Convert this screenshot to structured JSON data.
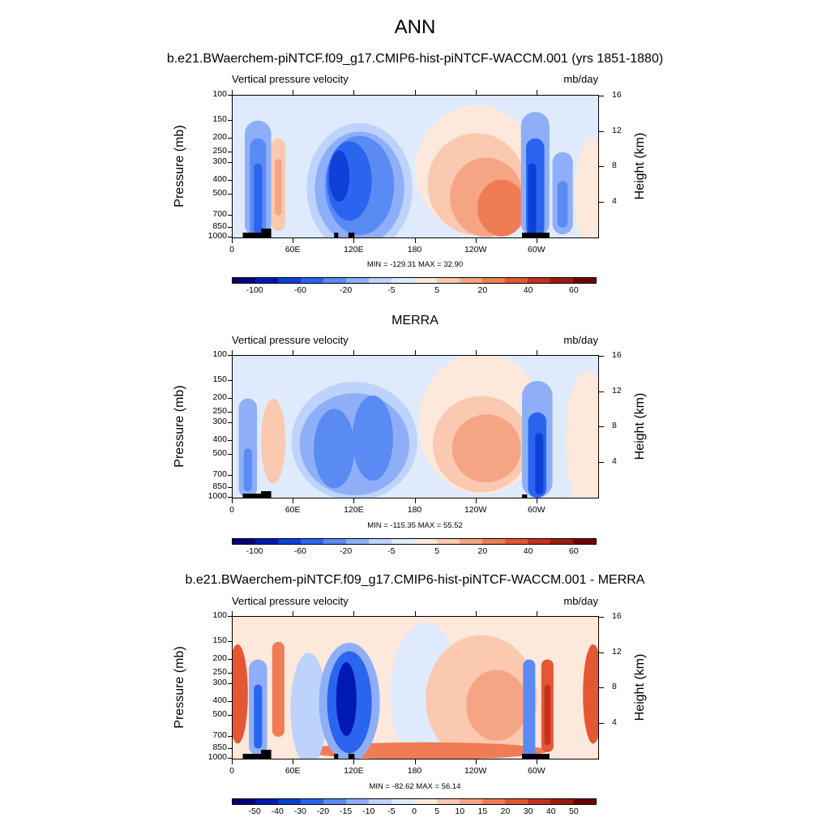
{
  "title": "ANN",
  "colors": {
    "model": [
      "#00007a",
      "#0019b4",
      "#0d3fd9",
      "#2b64ef",
      "#5a8af4",
      "#8eaff7",
      "#bdd3fb",
      "#dfebfd",
      "#fde8dc",
      "#fbc9b0",
      "#f6a584",
      "#f07c55",
      "#e45634",
      "#c6311b",
      "#9e1a10",
      "#6e0000"
    ],
    "diff": [
      "#00007a",
      "#0019b4",
      "#0d3fd9",
      "#2b64ef",
      "#5a8af4",
      "#8eaff7",
      "#bdd3fb",
      "#dfebfd",
      "#fde8dc",
      "#fbc9b0",
      "#f6a584",
      "#f07c55",
      "#e45634",
      "#c6311b",
      "#9e1a10",
      "#6e0000"
    ]
  },
  "panels": [
    {
      "title": "b.e21.BWaerchem-piNTCF.f09_g17.CMIP6-hist-piNTCF-WACCM.001 (yrs 1851-1880)",
      "variable": "Vertical pressure velocity",
      "units": "mb/day",
      "stats": "MIN = -129.31  MAX =  32.90",
      "colorbar_labels": [
        "-100",
        "-60",
        "-20",
        "-5",
        "5",
        "20",
        "40",
        "60"
      ]
    },
    {
      "title": "MERRA",
      "variable": "Vertical pressure velocity",
      "units": "mb/day",
      "stats": "MIN = -115.35  MAX =  55.52",
      "colorbar_labels": [
        "-100",
        "-60",
        "-20",
        "-5",
        "5",
        "20",
        "40",
        "60"
      ]
    },
    {
      "title": "b.e21.BWaerchem-piNTCF.f09_g17.CMIP6-hist-piNTCF-WACCM.001 - MERRA",
      "variable": "Vertical pressure velocity",
      "units": "mb/day",
      "stats": "MIN = -82.62  MAX =  56.14",
      "colorbar_labels": [
        "-50",
        "-40",
        "-30",
        "-20",
        "-15",
        "-10",
        "-5",
        "0",
        "5",
        "10",
        "15",
        "20",
        "30",
        "40",
        "50"
      ]
    }
  ],
  "axes": {
    "ylabel_left": "Pressure (mb)",
    "ylabel_right": "Height (km)",
    "pressure_ticks": [
      "100",
      "150",
      "200",
      "250",
      "300",
      "400",
      "500",
      "700",
      "850",
      "1000"
    ],
    "height_ticks": [
      "16",
      "12",
      "8",
      "4"
    ],
    "lon_ticks": [
      "0",
      "60E",
      "120E",
      "180",
      "120W",
      "60W"
    ]
  },
  "chart_data": [
    {
      "type": "heatmap",
      "title": "b.e21.BWaerchem-piNTCF.f09_g17.CMIP6-hist-piNTCF-WACCM.001 (yrs 1851-1880)",
      "subtitle": "Vertical pressure velocity",
      "units": "mb/day",
      "x": "longitude",
      "y": "pressure",
      "xlim": [
        0,
        360
      ],
      "ylim": [
        1000,
        100
      ],
      "y_scale": "log",
      "min": -129.31,
      "max": 32.9,
      "features": [
        {
          "lon": 27,
          "p": 420,
          "value": -60
        },
        {
          "lon": 45,
          "p": 400,
          "value": 20
        },
        {
          "lon": 105,
          "p": 350,
          "value": -100
        },
        {
          "lon": 145,
          "p": 350,
          "value": -60
        },
        {
          "lon": 240,
          "p": 450,
          "value": 30
        },
        {
          "lon": 295,
          "p": 400,
          "value": -100
        },
        {
          "lon": 325,
          "p": 450,
          "value": -30
        }
      ]
    },
    {
      "type": "heatmap",
      "title": "MERRA",
      "subtitle": "Vertical pressure velocity",
      "units": "mb/day",
      "x": "longitude",
      "y": "pressure",
      "xlim": [
        0,
        360
      ],
      "ylim": [
        1000,
        100
      ],
      "y_scale": "log",
      "min": -115.35,
      "max": 55.52,
      "features": [
        {
          "lon": 15,
          "p": 600,
          "value": -30
        },
        {
          "lon": 35,
          "p": 400,
          "value": 10
        },
        {
          "lon": 100,
          "p": 450,
          "value": -60
        },
        {
          "lon": 135,
          "p": 400,
          "value": -60
        },
        {
          "lon": 245,
          "p": 450,
          "value": 20
        },
        {
          "lon": 300,
          "p": 450,
          "value": -100
        }
      ]
    },
    {
      "type": "heatmap",
      "title": "b.e21.BWaerchem-piNTCF.f09_g17.CMIP6-hist-piNTCF-WACCM.001 - MERRA",
      "subtitle": "Vertical pressure velocity",
      "units": "mb/day",
      "x": "longitude",
      "y": "pressure",
      "xlim": [
        0,
        360
      ],
      "ylim": [
        1000,
        100
      ],
      "y_scale": "log",
      "min": -82.62,
      "max": 56.14,
      "features": [
        {
          "lon": 5,
          "p": 300,
          "value": 30
        },
        {
          "lon": 25,
          "p": 450,
          "value": -40
        },
        {
          "lon": 45,
          "p": 350,
          "value": 20
        },
        {
          "lon": 115,
          "p": 400,
          "value": -50
        },
        {
          "lon": 165,
          "p": 500,
          "value": 10
        },
        {
          "lon": 250,
          "p": 300,
          "value": 15
        },
        {
          "lon": 290,
          "p": 600,
          "value": -40
        },
        {
          "lon": 310,
          "p": 400,
          "value": 40
        },
        {
          "lon": 355,
          "p": 300,
          "value": 30
        }
      ]
    }
  ]
}
